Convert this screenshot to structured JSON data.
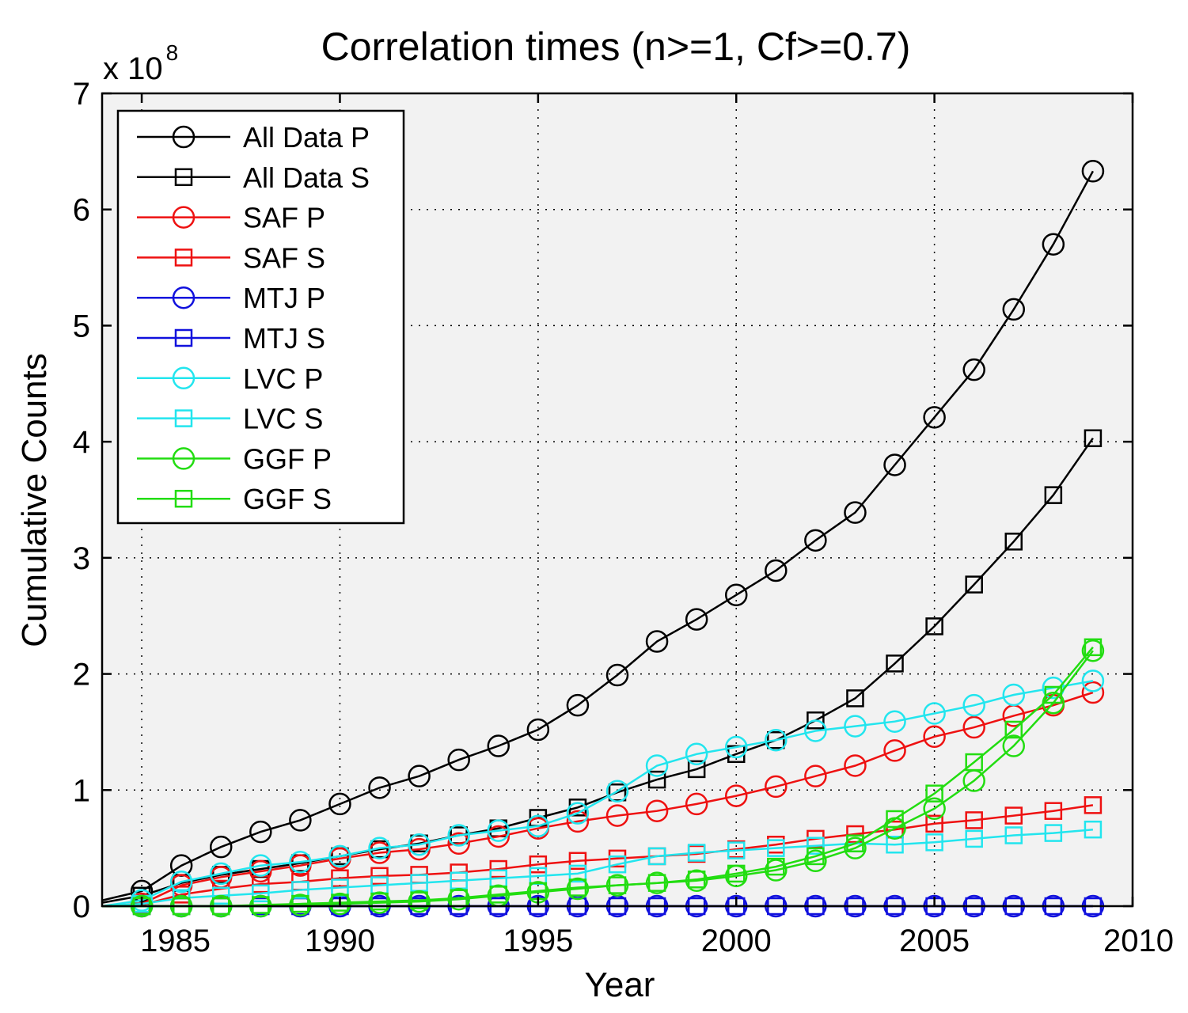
{
  "chart_data": {
    "type": "line",
    "title": "Correlation times (n>=1, Cf>=0.7)",
    "xlabel": "Year",
    "ylabel": "Cumulative Counts",
    "y_multiplier": {
      "base": "x 10",
      "exponent": "8"
    },
    "xlim": [
      1984,
      2010
    ],
    "ylim": [
      0,
      7
    ],
    "xticks": [
      1985,
      1990,
      1995,
      2000,
      2005,
      2010
    ],
    "xtick_labels": [
      "1985",
      "1990",
      "1995",
      "2000",
      "2005",
      "2010"
    ],
    "yticks": [
      0,
      1,
      2,
      3,
      4,
      5,
      6,
      7
    ],
    "ytick_labels": [
      "0",
      "1",
      "2",
      "3",
      "4",
      "5",
      "6",
      "7"
    ],
    "grid": true,
    "legend_position": "top-left",
    "background": "#f2f2f2",
    "x": [
      1985,
      1986,
      1987,
      1988,
      1989,
      1990,
      1991,
      1992,
      1993,
      1994,
      1995,
      1996,
      1997,
      1998,
      1999,
      2000,
      2001,
      2002,
      2003,
      2004,
      2005,
      2006,
      2007,
      2008,
      2009
    ],
    "series": [
      {
        "name": "All Data P",
        "color": "#000000",
        "marker": "circle",
        "start": [
          1984,
          0.05
        ],
        "values": [
          0.13,
          0.35,
          0.51,
          0.64,
          0.74,
          0.88,
          1.02,
          1.12,
          1.26,
          1.38,
          1.52,
          1.73,
          1.99,
          2.28,
          2.47,
          2.68,
          2.89,
          3.15,
          3.39,
          3.8,
          4.21,
          4.62,
          5.14,
          5.7,
          6.33
        ]
      },
      {
        "name": "All Data S",
        "color": "#000000",
        "marker": "square",
        "start": [
          1984,
          0.03
        ],
        "values": [
          0.09,
          0.2,
          0.27,
          0.32,
          0.37,
          0.43,
          0.49,
          0.54,
          0.61,
          0.67,
          0.76,
          0.85,
          0.98,
          1.09,
          1.18,
          1.31,
          1.43,
          1.6,
          1.79,
          2.09,
          2.41,
          2.77,
          3.14,
          3.54,
          4.03
        ]
      },
      {
        "name": "SAF P",
        "color": "#ee1111",
        "marker": "circle",
        "start": [
          1984,
          0.0
        ],
        "values": [
          0.02,
          0.18,
          0.25,
          0.3,
          0.35,
          0.41,
          0.46,
          0.49,
          0.54,
          0.6,
          0.67,
          0.73,
          0.78,
          0.82,
          0.88,
          0.95,
          1.03,
          1.12,
          1.21,
          1.34,
          1.46,
          1.54,
          1.64,
          1.73,
          1.84
        ]
      },
      {
        "name": "SAF S",
        "color": "#ee1111",
        "marker": "square",
        "start": [
          1984,
          0.0
        ],
        "values": [
          0.01,
          0.1,
          0.15,
          0.19,
          0.21,
          0.24,
          0.26,
          0.27,
          0.29,
          0.32,
          0.36,
          0.39,
          0.41,
          0.43,
          0.45,
          0.49,
          0.53,
          0.58,
          0.62,
          0.66,
          0.71,
          0.74,
          0.78,
          0.82,
          0.87
        ]
      },
      {
        "name": "MTJ P",
        "color": "#1111dd",
        "marker": "circle",
        "start": [
          1984,
          0.0
        ],
        "values": [
          0,
          0,
          0,
          0,
          0,
          0,
          0,
          0,
          0,
          0,
          0,
          0,
          0,
          0,
          0,
          0,
          0,
          0,
          0,
          0,
          0,
          0,
          0,
          0,
          0
        ]
      },
      {
        "name": "MTJ S",
        "color": "#1111dd",
        "marker": "square",
        "start": [
          1984,
          0.0
        ],
        "values": [
          0,
          0,
          0,
          0,
          0,
          0,
          0,
          0,
          0,
          0,
          0,
          0,
          0,
          0,
          0,
          0,
          0,
          0,
          0,
          0,
          0,
          0,
          0,
          0,
          0
        ]
      },
      {
        "name": "LVC P",
        "color": "#22e5ee",
        "marker": "circle",
        "start": [
          1984,
          0.0
        ],
        "values": [
          0.05,
          0.21,
          0.28,
          0.35,
          0.38,
          0.43,
          0.5,
          0.53,
          0.61,
          0.65,
          0.69,
          0.8,
          0.99,
          1.21,
          1.31,
          1.37,
          1.43,
          1.51,
          1.55,
          1.59,
          1.66,
          1.73,
          1.82,
          1.88,
          1.94
        ]
      },
      {
        "name": "LVC S",
        "color": "#22e5ee",
        "marker": "square",
        "start": [
          1984,
          0.0
        ],
        "values": [
          0.02,
          0.07,
          0.09,
          0.11,
          0.14,
          0.16,
          0.18,
          0.2,
          0.22,
          0.24,
          0.26,
          0.28,
          0.36,
          0.43,
          0.46,
          0.48,
          0.5,
          0.52,
          0.54,
          0.53,
          0.55,
          0.58,
          0.61,
          0.63,
          0.66
        ]
      },
      {
        "name": "GGF P",
        "color": "#22dd11",
        "marker": "circle",
        "start": [
          1984,
          0.0
        ],
        "values": [
          0.0,
          0.0,
          0.0,
          0.0,
          0.01,
          0.02,
          0.03,
          0.04,
          0.06,
          0.09,
          0.12,
          0.15,
          0.18,
          0.2,
          0.22,
          0.26,
          0.31,
          0.39,
          0.5,
          0.67,
          0.84,
          1.08,
          1.38,
          1.75,
          2.2
        ]
      },
      {
        "name": "GGF S",
        "color": "#22dd11",
        "marker": "square",
        "start": [
          1984,
          0.0
        ],
        "values": [
          0.0,
          0.0,
          0.0,
          0.01,
          0.02,
          0.03,
          0.04,
          0.05,
          0.07,
          0.1,
          0.13,
          0.16,
          0.18,
          0.2,
          0.23,
          0.28,
          0.34,
          0.43,
          0.54,
          0.75,
          0.97,
          1.24,
          1.52,
          1.82,
          2.23
        ]
      }
    ]
  }
}
